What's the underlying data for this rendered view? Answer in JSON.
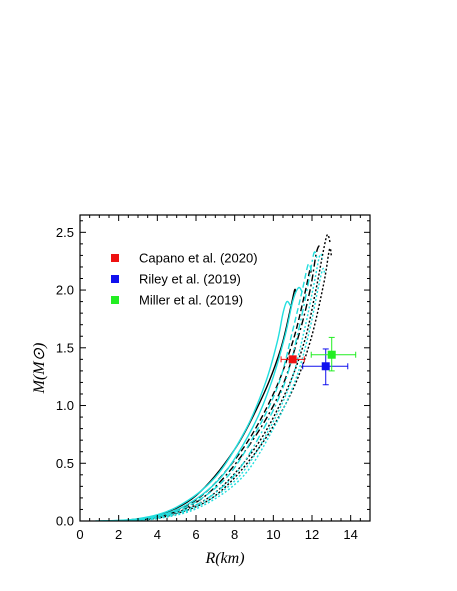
{
  "chart_data": {
    "type": "line",
    "xlabel": "R(km)",
    "ylabel": "M(M⊙)",
    "xlim": [
      0,
      15
    ],
    "ylim": [
      0,
      2.65
    ],
    "x_ticks": [
      "0",
      "2",
      "4",
      "6",
      "8",
      "10",
      "12",
      "14"
    ],
    "y_ticks": [
      "0.0",
      "0.5",
      "1.0",
      "1.5",
      "2.0",
      "2.5"
    ],
    "grid": false,
    "legend_position": "top-left",
    "curves": [
      {
        "color": "#000000",
        "style": "solid",
        "points": [
          [
            2.0,
            0.0
          ],
          [
            4.0,
            0.05
          ],
          [
            6.0,
            0.22
          ],
          [
            8.0,
            0.62
          ],
          [
            9.5,
            1.1
          ],
          [
            10.4,
            1.5
          ],
          [
            10.9,
            1.85
          ],
          [
            11.1,
            2.0
          ],
          [
            11.15,
            1.98
          ]
        ]
      },
      {
        "color": "#000000",
        "style": "dashed",
        "points": [
          [
            2.2,
            0.0
          ],
          [
            4.2,
            0.05
          ],
          [
            6.3,
            0.22
          ],
          [
            8.4,
            0.62
          ],
          [
            10.0,
            1.1
          ],
          [
            11.0,
            1.55
          ],
          [
            11.6,
            1.95
          ],
          [
            11.9,
            2.18
          ],
          [
            11.95,
            2.15
          ]
        ]
      },
      {
        "color": "#000000",
        "style": "dashdot",
        "points": [
          [
            2.3,
            0.0
          ],
          [
            4.4,
            0.05
          ],
          [
            6.5,
            0.22
          ],
          [
            8.6,
            0.62
          ],
          [
            10.3,
            1.1
          ],
          [
            11.3,
            1.6
          ],
          [
            11.9,
            2.0
          ],
          [
            12.2,
            2.3
          ],
          [
            12.35,
            2.38
          ],
          [
            12.4,
            2.35
          ]
        ]
      },
      {
        "color": "#000000",
        "style": "dotted",
        "points": [
          [
            2.4,
            0.0
          ],
          [
            4.5,
            0.05
          ],
          [
            6.8,
            0.22
          ],
          [
            9.0,
            0.62
          ],
          [
            10.6,
            1.1
          ],
          [
            11.6,
            1.55
          ],
          [
            12.2,
            2.0
          ],
          [
            12.6,
            2.35
          ],
          [
            12.8,
            2.48
          ],
          [
            12.95,
            2.4
          ]
        ]
      },
      {
        "color": "#000000",
        "style": "dotted",
        "points": [
          [
            2.5,
            0.0
          ],
          [
            4.7,
            0.05
          ],
          [
            7.0,
            0.22
          ],
          [
            9.2,
            0.62
          ],
          [
            10.9,
            1.1
          ],
          [
            11.9,
            1.55
          ],
          [
            12.6,
            2.05
          ],
          [
            12.9,
            2.35
          ],
          [
            13.0,
            2.3
          ]
        ]
      },
      {
        "color": "#22dede",
        "style": "solid",
        "points": [
          [
            0.8,
            0.0
          ],
          [
            3.0,
            0.02
          ],
          [
            5.0,
            0.12
          ],
          [
            7.0,
            0.38
          ],
          [
            8.6,
            0.8
          ],
          [
            9.6,
            1.2
          ],
          [
            10.2,
            1.55
          ],
          [
            10.5,
            1.8
          ],
          [
            10.7,
            1.9
          ],
          [
            10.9,
            1.86
          ]
        ]
      },
      {
        "color": "#22dede",
        "style": "solid",
        "points": [
          [
            1.0,
            0.0
          ],
          [
            3.2,
            0.02
          ],
          [
            5.3,
            0.12
          ],
          [
            7.3,
            0.38
          ],
          [
            8.9,
            0.8
          ],
          [
            9.9,
            1.2
          ],
          [
            10.6,
            1.6
          ],
          [
            11.0,
            1.9
          ],
          [
            11.3,
            2.02
          ],
          [
            11.5,
            1.98
          ]
        ]
      },
      {
        "color": "#22dede",
        "style": "dashed",
        "points": [
          [
            1.2,
            0.0
          ],
          [
            3.4,
            0.02
          ],
          [
            5.5,
            0.12
          ],
          [
            7.6,
            0.38
          ],
          [
            9.2,
            0.8
          ],
          [
            10.3,
            1.2
          ],
          [
            11.0,
            1.65
          ],
          [
            11.5,
            2.0
          ],
          [
            11.8,
            2.22
          ],
          [
            11.95,
            2.18
          ]
        ]
      },
      {
        "color": "#22dede",
        "style": "dashdot",
        "points": [
          [
            1.4,
            0.0
          ],
          [
            3.6,
            0.02
          ],
          [
            5.8,
            0.12
          ],
          [
            7.9,
            0.38
          ],
          [
            9.5,
            0.8
          ],
          [
            10.6,
            1.2
          ],
          [
            11.3,
            1.65
          ],
          [
            11.8,
            2.05
          ],
          [
            12.1,
            2.32
          ],
          [
            12.25,
            2.28
          ]
        ]
      },
      {
        "color": "#22dede",
        "style": "dotted",
        "points": [
          [
            1.6,
            0.0
          ],
          [
            3.8,
            0.02
          ],
          [
            6.0,
            0.12
          ],
          [
            8.2,
            0.38
          ],
          [
            9.8,
            0.8
          ],
          [
            10.9,
            1.2
          ],
          [
            11.6,
            1.65
          ],
          [
            12.1,
            2.05
          ],
          [
            12.4,
            2.3
          ],
          [
            12.55,
            2.27
          ]
        ]
      },
      {
        "color": "#22dede",
        "style": "dotted",
        "points": [
          [
            1.8,
            0.0
          ],
          [
            4.0,
            0.02
          ],
          [
            6.2,
            0.12
          ],
          [
            8.4,
            0.38
          ],
          [
            10.0,
            0.8
          ],
          [
            11.1,
            1.2
          ],
          [
            11.8,
            1.6
          ],
          [
            12.3,
            2.0
          ],
          [
            12.55,
            2.18
          ],
          [
            12.65,
            2.15
          ]
        ]
      }
    ],
    "data_points": [
      {
        "name": "Capano et al. (2020)",
        "color": "#ee1111",
        "x": 11.0,
        "y": 1.4,
        "xerr": [
          0.6,
          0.6
        ],
        "yerr": [
          0.0,
          0.0
        ]
      },
      {
        "name": "Riley et al. (2019)",
        "color": "#1111ee",
        "x": 12.71,
        "y": 1.34,
        "xerr": [
          1.19,
          1.14
        ],
        "yerr": [
          0.16,
          0.15
        ]
      },
      {
        "name": "Miller et al. (2019)",
        "color": "#22ee22",
        "x": 13.02,
        "y": 1.44,
        "xerr": [
          1.06,
          1.24
        ],
        "yerr": [
          0.14,
          0.15
        ]
      }
    ]
  }
}
